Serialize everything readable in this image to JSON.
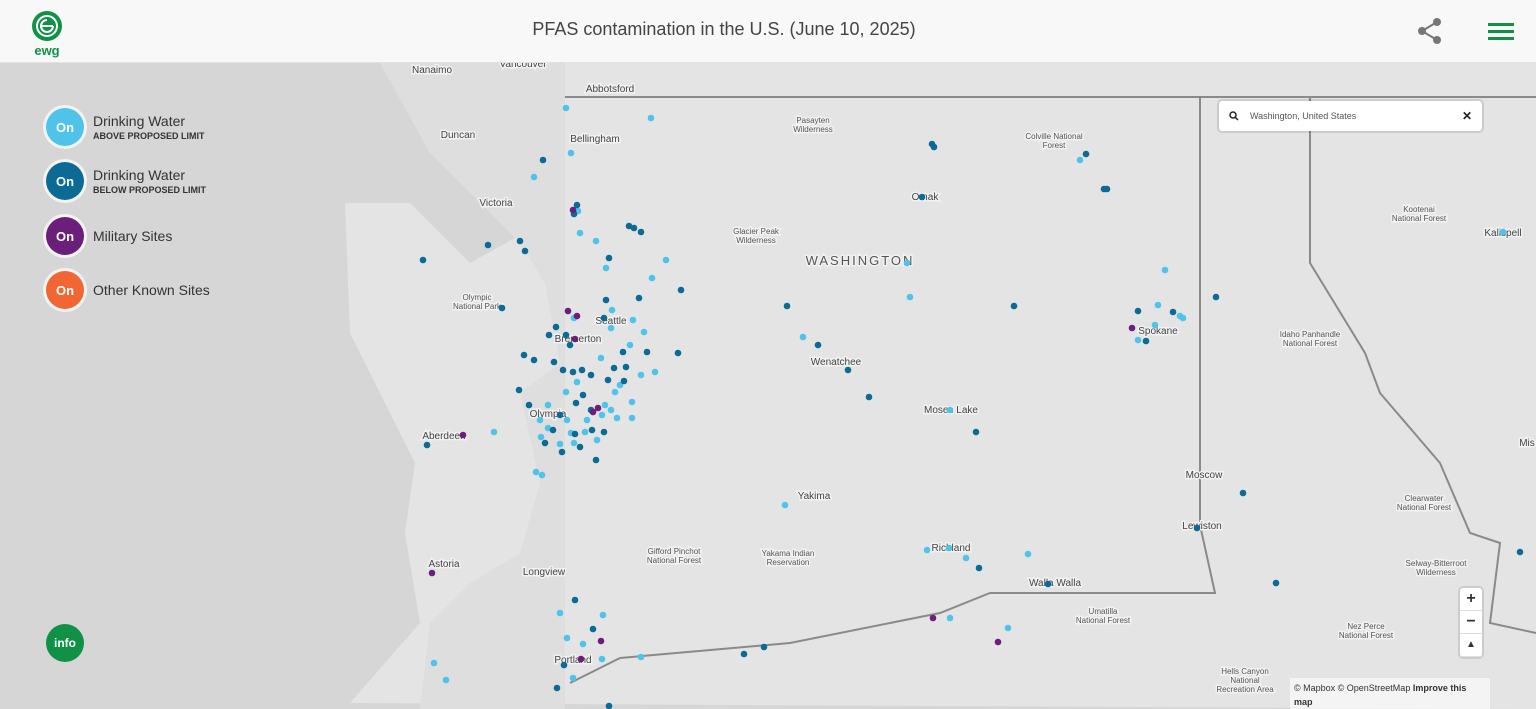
{
  "header": {
    "logo": "ewg",
    "title": "PFAS contamination in the U.S. (June 10, 2025)"
  },
  "legend": [
    {
      "toggle": "On",
      "title": "Drinking Water",
      "subtitle": "ABOVE PROPOSED LIMIT"
    },
    {
      "toggle": "On",
      "title": "Drinking Water",
      "subtitle": "BELOW PROPOSED LIMIT"
    },
    {
      "toggle": "On",
      "title": "Military Sites"
    },
    {
      "toggle": "On",
      "title": "Other Known Sites"
    }
  ],
  "info": "info",
  "search": {
    "text": "Washington, United States",
    "clear": "✕"
  },
  "zoom": {
    "in": "+",
    "out": "−"
  },
  "attribution": {
    "text": "© Mapbox © OpenStreetMap",
    "link": "Improve this map"
  },
  "map_labels": [
    {
      "lines": [
        "Nanaimo"
      ]
    },
    {
      "lines": [
        "Vancouver"
      ]
    },
    {
      "lines": [
        "Abbotsford"
      ]
    },
    {
      "lines": [
        "Duncan"
      ]
    },
    {
      "lines": [
        "Bellingham"
      ]
    },
    {
      "lines": [
        "Victoria"
      ]
    },
    {
      "lines": [
        "Pasayten",
        "Wilderness"
      ]
    },
    {
      "lines": [
        "Colville National",
        "Forest"
      ]
    },
    {
      "lines": [
        "Omak"
      ]
    },
    {
      "lines": [
        "Glacier Peak",
        "Wilderness"
      ]
    },
    {
      "lines": [
        "WASHINGTON"
      ]
    },
    {
      "lines": [
        "Kootenai",
        "National Forest"
      ]
    },
    {
      "lines": [
        "Kalispell"
      ]
    },
    {
      "lines": [
        "Olympic",
        "National Park"
      ]
    },
    {
      "lines": [
        "Seattle"
      ]
    },
    {
      "lines": [
        "Bremerton"
      ]
    },
    {
      "lines": [
        "Spokane"
      ]
    },
    {
      "lines": [
        "Idaho Panhandle",
        "National Forest"
      ]
    },
    {
      "lines": [
        "Wenatchee"
      ]
    },
    {
      "lines": [
        "Olympia"
      ]
    },
    {
      "lines": [
        "Moses Lake"
      ]
    },
    {
      "lines": [
        "Aberdeen"
      ]
    },
    {
      "lines": [
        "Mis"
      ]
    },
    {
      "lines": [
        "Moscow"
      ]
    },
    {
      "lines": [
        "Yakima"
      ]
    },
    {
      "lines": [
        "Clearwater",
        "National Forest"
      ]
    },
    {
      "lines": [
        "Lewiston"
      ]
    },
    {
      "lines": [
        "Gifford Pinchot",
        "National Forest"
      ]
    },
    {
      "lines": [
        "Yakama Indian",
        "Reservation"
      ]
    },
    {
      "lines": [
        "Richland"
      ]
    },
    {
      "lines": [
        "Astoria"
      ]
    },
    {
      "lines": [
        "Longview"
      ]
    },
    {
      "lines": [
        "Selway-Bitterroot",
        "Wilderness"
      ]
    },
    {
      "lines": [
        "Walla Walla"
      ]
    },
    {
      "lines": [
        "Umatilla",
        "National Forest"
      ]
    },
    {
      "lines": [
        "Nez Perce",
        "National Forest"
      ]
    },
    {
      "lines": [
        "Portland"
      ]
    },
    {
      "lines": [
        "Hells Canyon",
        "National",
        "Recreation Area"
      ]
    }
  ]
}
